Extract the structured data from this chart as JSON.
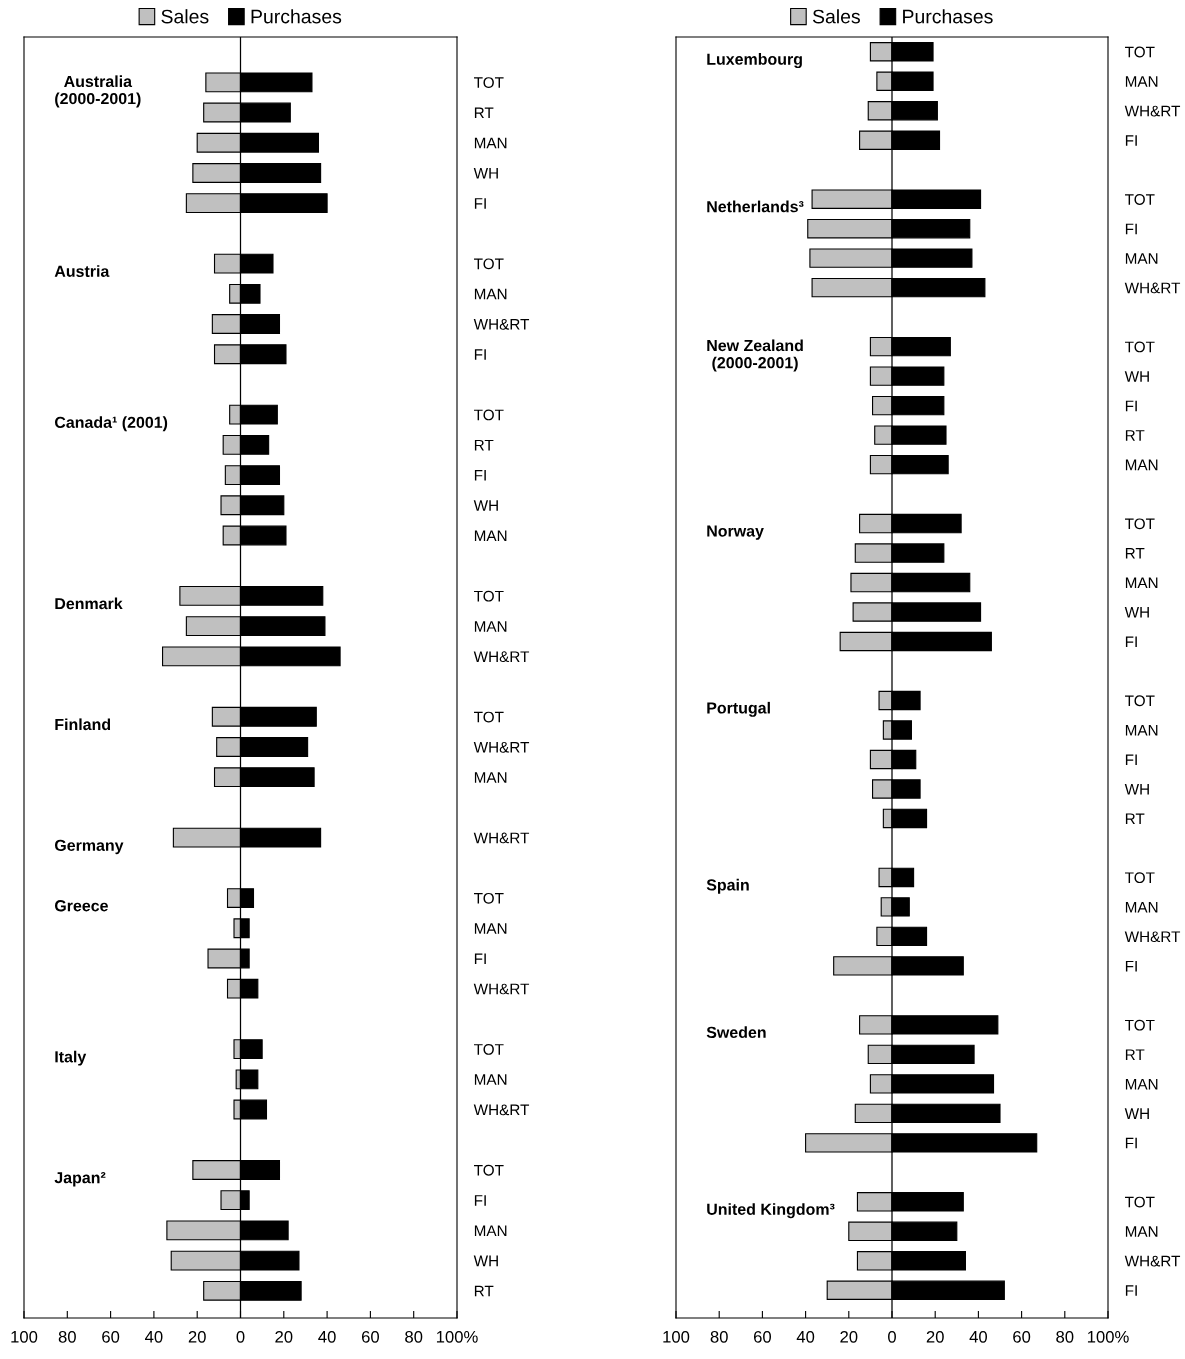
{
  "chart_data": [
    {
      "type": "bar",
      "orientation": "horizontal",
      "legend": "top",
      "stacked": true,
      "categories": [
        "TOT",
        "RT",
        "MAN",
        "WH",
        "FI",
        null,
        "TOT",
        "MAN",
        "WH&RT",
        "FI",
        null,
        "TOT",
        "RT",
        "FI",
        "WH",
        "MAN",
        null,
        "TOT",
        "MAN",
        "WH&RT",
        null,
        "TOT",
        "WH&RT",
        "MAN",
        null,
        "WH&RT",
        null,
        "TOT",
        "MAN",
        "FI",
        "WH&RT",
        null,
        "TOT",
        "MAN",
        "WH&RT",
        null,
        "TOT",
        "FI",
        "MAN",
        "WH",
        "RT"
      ],
      "series": [
        {
          "name": "Sales",
          "color": "#c0c0c0",
          "values": [
            -16,
            -17,
            -20,
            -22,
            -25,
            null,
            -12,
            -5,
            -13,
            -12,
            null,
            -5,
            -8,
            -7,
            -9,
            -8,
            null,
            -28,
            -25,
            -36,
            null,
            -13,
            -11,
            -12,
            null,
            -31,
            null,
            -6,
            -3,
            -15,
            -6,
            null,
            -3,
            -2,
            -3,
            null,
            -22,
            -9,
            -34,
            -32,
            -17
          ]
        },
        {
          "name": "Purchases",
          "color": "#000000",
          "values": [
            33,
            23,
            36,
            37,
            40,
            null,
            15,
            9,
            18,
            21,
            null,
            17,
            13,
            18,
            20,
            21,
            null,
            38,
            39,
            46,
            null,
            35,
            31,
            34,
            null,
            37,
            null,
            6,
            4,
            4,
            8,
            null,
            10,
            8,
            12,
            null,
            18,
            4,
            22,
            27,
            28
          ]
        }
      ],
      "annotations": [
        "Australia\n(2000-2001)",
        "Austria",
        "Canada¹ (2001)",
        "Denmark",
        "Finland",
        "Germany",
        "Greece",
        "Italy",
        "Japan²"
      ],
      "xlim": [
        -100,
        100
      ],
      "xticks": [
        {
          "value": -100,
          "label": "100"
        },
        {
          "value": -80,
          "label": "80"
        },
        {
          "value": -60,
          "label": "60"
        },
        {
          "value": -40,
          "label": "40"
        },
        {
          "value": -20,
          "label": "20"
        },
        0,
        20,
        40,
        60,
        80,
        {
          "value": 100,
          "label": "100%"
        }
      ],
      "ref_lines": [
        {
          "axis": "x",
          "value": 0,
          "color": "#000000"
        }
      ]
    },
    {
      "type": "bar",
      "orientation": "horizontal",
      "legend": "top",
      "stacked": true,
      "categories": [
        "TOT",
        "MAN",
        "WH&RT",
        "FI",
        null,
        "TOT",
        "FI",
        "MAN",
        "WH&RT",
        null,
        "TOT",
        "WH",
        "FI",
        "RT",
        "MAN",
        null,
        "TOT",
        "RT",
        "MAN",
        "WH",
        "FI",
        null,
        "TOT",
        "MAN",
        "FI",
        "WH",
        "RT",
        null,
        "TOT",
        "MAN",
        "WH&RT",
        "FI",
        null,
        "TOT",
        "RT",
        "MAN",
        "WH",
        "FI",
        null,
        "TOT",
        "MAN",
        "WH&RT",
        "FI"
      ],
      "series": [
        {
          "name": "Sales",
          "color": "#c0c0c0",
          "values": [
            -10,
            -7,
            -11,
            -15,
            null,
            -37,
            -39,
            -38,
            -37,
            null,
            -10,
            -10,
            -9,
            -8,
            -10,
            null,
            -15,
            -17,
            -19,
            -18,
            -24,
            null,
            -6,
            -4,
            -10,
            -9,
            -4,
            null,
            -6,
            -5,
            -7,
            -27,
            null,
            -15,
            -11,
            -10,
            -17,
            -40,
            null,
            -16,
            -20,
            -16,
            -30
          ]
        },
        {
          "name": "Purchases",
          "color": "#000000",
          "values": [
            19,
            19,
            21,
            22,
            null,
            41,
            36,
            37,
            43,
            null,
            27,
            24,
            24,
            25,
            26,
            null,
            32,
            24,
            36,
            41,
            46,
            null,
            13,
            9,
            11,
            13,
            16,
            null,
            10,
            8,
            16,
            33,
            null,
            49,
            38,
            47,
            50,
            67,
            null,
            33,
            30,
            34,
            52
          ]
        }
      ],
      "annotations": [
        "Luxembourg",
        "Netherlands³",
        "New Zealand\n(2000-2001)",
        "Norway",
        "Portugal",
        "Spain",
        "Sweden",
        "United Kingdom³"
      ],
      "xlim": [
        -100,
        100
      ],
      "xticks": [
        {
          "value": -100,
          "label": "100"
        },
        {
          "value": -80,
          "label": "80"
        },
        {
          "value": -60,
          "label": "60"
        },
        {
          "value": -40,
          "label": "40"
        },
        {
          "value": -20,
          "label": "20"
        },
        0,
        20,
        40,
        60,
        80,
        {
          "value": 100,
          "label": "100%"
        }
      ],
      "ref_lines": [
        {
          "axis": "x",
          "value": 0,
          "color": "#000000"
        }
      ]
    }
  ]
}
